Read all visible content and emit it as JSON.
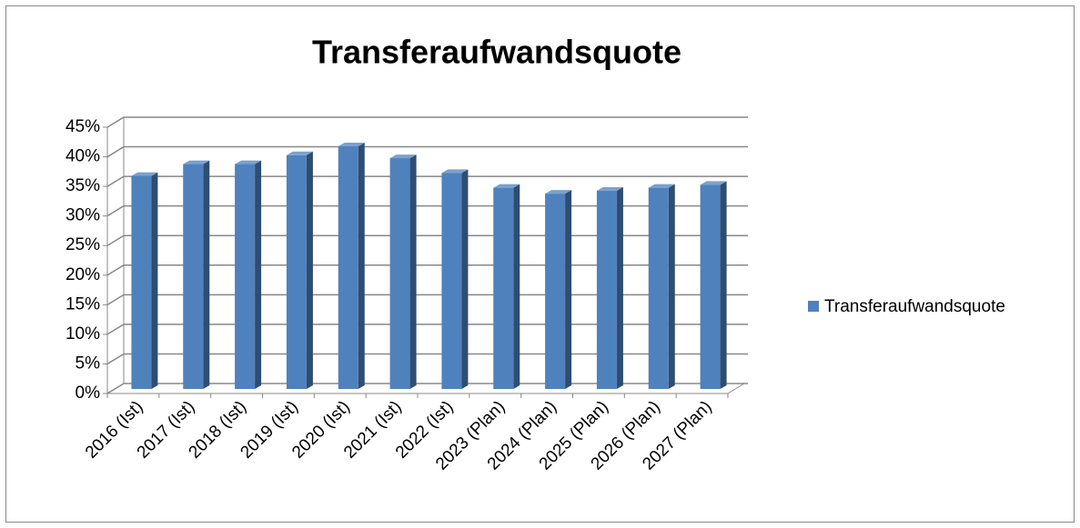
{
  "chart_data": {
    "type": "bar3d",
    "title": "Transferaufwandsquote",
    "categories": [
      "2016 (Ist)",
      "2017 (Ist)",
      "2018 (Ist)",
      "2019 (Ist)",
      "2020 (Ist)",
      "2021 (Ist)",
      "2022 (Ist)",
      "2023 (Plan)",
      "2024 (Plan)",
      "2025 (Plan)",
      "2026 (Plan)",
      "2027 (Plan)"
    ],
    "series": [
      {
        "name": "Transferaufwandsquote",
        "color": "#4f81bd",
        "values": [
          36,
          38,
          38,
          39.5,
          41,
          39,
          36.5,
          34,
          33,
          33.5,
          34,
          34.5
        ]
      }
    ],
    "ylim": [
      0,
      45
    ],
    "yticks": [
      {
        "value": 0,
        "label": "0%"
      },
      {
        "value": 5,
        "label": "5%"
      },
      {
        "value": 10,
        "label": "10%"
      },
      {
        "value": 15,
        "label": "15%"
      },
      {
        "value": 20,
        "label": "20%"
      },
      {
        "value": 25,
        "label": "25%"
      },
      {
        "value": 30,
        "label": "30%"
      },
      {
        "value": 35,
        "label": "35%"
      },
      {
        "value": 40,
        "label": "40%"
      },
      {
        "value": 45,
        "label": "45%"
      }
    ],
    "grid": true,
    "legend": "right"
  }
}
